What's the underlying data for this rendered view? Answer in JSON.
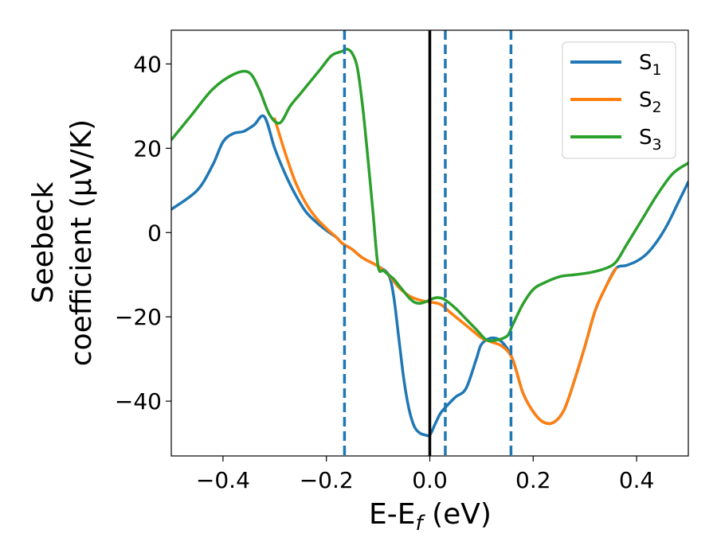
{
  "chart_data": {
    "type": "line",
    "xlabel": "E-E",
    "xlabel_sub": "f",
    "xlabel_unit": " (eV)",
    "ylabel_line1": "Seebeck",
    "ylabel_line2": "coefficient  (μV/K)",
    "xlim": [
      -0.5,
      0.5
    ],
    "ylim": [
      -53,
      48
    ],
    "xticks": [
      -0.4,
      -0.2,
      0.0,
      0.2,
      0.4
    ],
    "xtick_labels": [
      "−0.4",
      "−0.2",
      "0.0",
      "0.2",
      "0.4"
    ],
    "yticks": [
      -40,
      -20,
      0,
      20,
      40
    ],
    "ytick_labels": [
      "−40",
      "−20",
      "0",
      "20",
      "40"
    ],
    "grid": false,
    "legend_position": "top-right",
    "series": [
      {
        "name": "S",
        "name_sub": "1",
        "color": "#1f77b4",
        "x": [
          -0.5,
          -0.45,
          -0.42,
          -0.4,
          -0.38,
          -0.36,
          -0.34,
          -0.32,
          -0.3,
          -0.28,
          -0.26,
          -0.24,
          -0.22,
          -0.2,
          -0.18,
          -0.17,
          -0.15,
          -0.13,
          -0.1,
          -0.08,
          -0.07,
          -0.06,
          -0.05,
          -0.04,
          -0.03,
          -0.02,
          -0.01,
          0.0,
          0.01,
          0.02,
          0.03,
          0.05,
          0.07,
          0.09,
          0.1,
          0.12,
          0.14,
          0.16,
          0.18,
          0.2,
          0.22,
          0.24,
          0.26,
          0.28,
          0.3,
          0.32,
          0.34,
          0.36,
          0.38,
          0.4,
          0.42,
          0.44,
          0.46,
          0.48,
          0.5
        ],
        "y": [
          5.5,
          10,
          16,
          21.5,
          23.5,
          24,
          25.5,
          27.5,
          20,
          14,
          9,
          5,
          2.5,
          0.5,
          -1.2,
          -2.5,
          -4,
          -6,
          -8,
          -10,
          -15,
          -25,
          -35,
          -42,
          -46,
          -47.5,
          -48,
          -48,
          -45.5,
          -43,
          -41.5,
          -39,
          -37,
          -30,
          -26.5,
          -25,
          -26,
          -30,
          -38,
          -42.5,
          -45,
          -45,
          -42,
          -35,
          -27,
          -18.5,
          -13,
          -8.5,
          -7.8,
          -6.8,
          -5,
          -2,
          2,
          7,
          12
        ]
      },
      {
        "name": "S",
        "name_sub": "2",
        "color": "#ff7f0e",
        "x": [
          -0.3,
          -0.28,
          -0.26,
          -0.24,
          -0.22,
          -0.2,
          -0.18,
          -0.17,
          -0.15,
          -0.13,
          -0.1,
          -0.08,
          -0.06,
          -0.04,
          -0.02,
          0.0,
          0.02,
          0.04,
          0.06,
          0.08,
          0.1,
          0.12,
          0.14,
          0.16,
          0.18,
          0.2,
          0.22,
          0.24,
          0.26,
          0.28,
          0.3,
          0.32,
          0.34,
          0.36
        ],
        "y": [
          27,
          19,
          12,
          7,
          3.5,
          1,
          -1.2,
          -2.5,
          -4,
          -6,
          -8,
          -10,
          -13,
          -15,
          -16,
          -16.5,
          -17,
          -19,
          -21,
          -23,
          -25,
          -26,
          -27,
          -30,
          -38,
          -42.5,
          -45,
          -45,
          -42,
          -35,
          -27,
          -18.5,
          -13,
          -8.5
        ]
      },
      {
        "name": "S",
        "name_sub": "3",
        "color": "#2ca02c",
        "x": [
          -0.5,
          -0.46,
          -0.42,
          -0.38,
          -0.35,
          -0.33,
          -0.31,
          -0.29,
          -0.27,
          -0.25,
          -0.23,
          -0.21,
          -0.19,
          -0.17,
          -0.16,
          -0.15,
          -0.14,
          -0.13,
          -0.12,
          -0.11,
          -0.1,
          -0.09,
          -0.08,
          -0.07,
          -0.06,
          -0.05,
          -0.04,
          -0.03,
          -0.02,
          -0.01,
          0.0,
          0.01,
          0.02,
          0.03,
          0.05,
          0.07,
          0.09,
          0.11,
          0.13,
          0.15,
          0.16,
          0.18,
          0.2,
          0.22,
          0.25,
          0.28,
          0.31,
          0.34,
          0.36,
          0.38,
          0.41,
          0.44,
          0.47,
          0.5
        ],
        "y": [
          22,
          28,
          34,
          37.5,
          38,
          34,
          28,
          26,
          30,
          33,
          36,
          39,
          42,
          43,
          43.5,
          42.5,
          39,
          30,
          18,
          5,
          -8,
          -9,
          -10,
          -11,
          -12.5,
          -14,
          -15.5,
          -16.5,
          -16.8,
          -16.5,
          -16,
          -15.5,
          -15.5,
          -16,
          -18,
          -20.5,
          -23,
          -25.5,
          -25.5,
          -24.5,
          -22,
          -17,
          -13.5,
          -12,
          -10.5,
          -10,
          -9.5,
          -8.5,
          -7,
          -3,
          3,
          9,
          14,
          16.5
        ]
      }
    ],
    "vlines": [
      {
        "x": -0.165,
        "color": "#1f77b4",
        "style": "dashed"
      },
      {
        "x": 0.0,
        "color": "#000000",
        "style": "solid"
      },
      {
        "x": 0.03,
        "color": "#1f77b4",
        "style": "dashed"
      },
      {
        "x": 0.157,
        "color": "#1f77b4",
        "style": "dashed"
      }
    ]
  }
}
